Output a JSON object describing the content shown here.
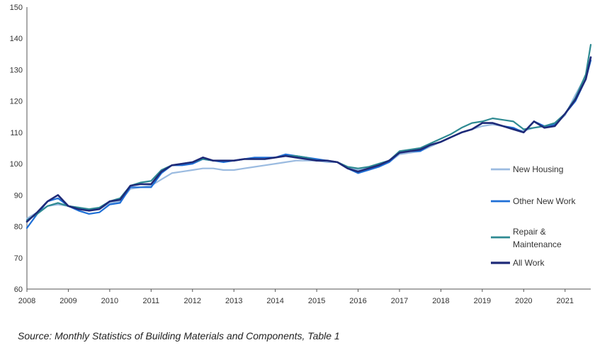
{
  "chart_data": {
    "type": "line",
    "title": "",
    "xlabel": "",
    "ylabel": "",
    "xlim": [
      2008,
      2021.62
    ],
    "ylim": [
      60,
      150
    ],
    "yticks": [
      60,
      70,
      80,
      90,
      100,
      110,
      120,
      130,
      140,
      150
    ],
    "xticks": [
      "2008",
      "2009",
      "2010",
      "2011",
      "2012",
      "2013",
      "2014",
      "2015",
      "2016",
      "2017",
      "2018",
      "2019",
      "2020",
      "2021"
    ],
    "grid": false,
    "legend_position": "right",
    "series": [
      {
        "name": "New Housing",
        "color": "#9bbbe0",
        "width": 2.2,
        "points": [
          [
            2008,
            82.5
          ],
          [
            2008.25,
            84.5
          ],
          [
            2008.5,
            86.5
          ],
          [
            2008.75,
            87
          ],
          [
            2009,
            86.5
          ],
          [
            2009.25,
            86
          ],
          [
            2009.5,
            85.5
          ],
          [
            2009.75,
            85.5
          ],
          [
            2010,
            87.5
          ],
          [
            2010.25,
            88
          ],
          [
            2010.5,
            92
          ],
          [
            2010.75,
            92.5
          ],
          [
            2011,
            93
          ],
          [
            2011.25,
            95
          ],
          [
            2011.5,
            97
          ],
          [
            2011.75,
            97.5
          ],
          [
            2012,
            98
          ],
          [
            2012.25,
            98.5
          ],
          [
            2012.5,
            98.5
          ],
          [
            2012.75,
            98
          ],
          [
            2013,
            98
          ],
          [
            2013.25,
            98.5
          ],
          [
            2013.5,
            99
          ],
          [
            2013.75,
            99.5
          ],
          [
            2014,
            100
          ],
          [
            2014.25,
            100.5
          ],
          [
            2014.5,
            101
          ],
          [
            2014.75,
            101
          ],
          [
            2015,
            101
          ],
          [
            2015.25,
            100.5
          ],
          [
            2015.5,
            100.5
          ],
          [
            2015.75,
            99
          ],
          [
            2016,
            98
          ],
          [
            2016.25,
            98.5
          ],
          [
            2016.5,
            99.5
          ],
          [
            2016.75,
            100.5
          ],
          [
            2017,
            103
          ],
          [
            2017.25,
            103.5
          ],
          [
            2017.5,
            104
          ],
          [
            2017.75,
            105.5
          ],
          [
            2018,
            107
          ],
          [
            2018.25,
            108.5
          ],
          [
            2018.5,
            110
          ],
          [
            2018.75,
            111
          ],
          [
            2019,
            112
          ],
          [
            2019.25,
            112.5
          ],
          [
            2019.5,
            112
          ],
          [
            2019.75,
            111
          ],
          [
            2020,
            110.5
          ],
          [
            2020.25,
            111.5
          ],
          [
            2020.5,
            112
          ],
          [
            2020.75,
            112.5
          ],
          [
            2021,
            115.5
          ],
          [
            2021.25,
            122
          ],
          [
            2021.5,
            128
          ],
          [
            2021.62,
            134
          ]
        ]
      },
      {
        "name": "Other New Work",
        "color": "#1f6fd6",
        "width": 2.2,
        "points": [
          [
            2008,
            79.5
          ],
          [
            2008.25,
            84
          ],
          [
            2008.5,
            88
          ],
          [
            2008.75,
            89
          ],
          [
            2009,
            86.5
          ],
          [
            2009.25,
            85
          ],
          [
            2009.5,
            84
          ],
          [
            2009.75,
            84.5
          ],
          [
            2010,
            87
          ],
          [
            2010.25,
            87.5
          ],
          [
            2010.5,
            92.5
          ],
          [
            2010.75,
            92.5
          ],
          [
            2011,
            92.5
          ],
          [
            2011.25,
            97
          ],
          [
            2011.5,
            99.5
          ],
          [
            2011.75,
            99.5
          ],
          [
            2012,
            100
          ],
          [
            2012.25,
            101.5
          ],
          [
            2012.5,
            101
          ],
          [
            2012.75,
            100.5
          ],
          [
            2013,
            101
          ],
          [
            2013.25,
            101.5
          ],
          [
            2013.5,
            102
          ],
          [
            2013.75,
            102
          ],
          [
            2014,
            102
          ],
          [
            2014.25,
            103
          ],
          [
            2014.5,
            102.5
          ],
          [
            2014.75,
            102
          ],
          [
            2015,
            101.5
          ],
          [
            2015.25,
            101
          ],
          [
            2015.5,
            100.5
          ],
          [
            2015.75,
            98.5
          ],
          [
            2016,
            97
          ],
          [
            2016.25,
            98
          ],
          [
            2016.5,
            99
          ],
          [
            2016.75,
            100.5
          ],
          [
            2017,
            103.5
          ],
          [
            2017.25,
            104
          ],
          [
            2017.5,
            104
          ],
          [
            2017.75,
            106
          ],
          [
            2018,
            107
          ],
          [
            2018.25,
            108.5
          ],
          [
            2018.5,
            110
          ],
          [
            2018.75,
            111
          ],
          [
            2019,
            113
          ],
          [
            2019.25,
            113
          ],
          [
            2019.5,
            112
          ],
          [
            2019.75,
            111.5
          ],
          [
            2020,
            110
          ],
          [
            2020.25,
            113.5
          ],
          [
            2020.5,
            112
          ],
          [
            2020.75,
            112.5
          ],
          [
            2021,
            116
          ],
          [
            2021.25,
            120
          ],
          [
            2021.5,
            127
          ],
          [
            2021.62,
            133
          ]
        ]
      },
      {
        "name": "Repair & Maintenance",
        "color": "#2e8a92",
        "width": 2.2,
        "points": [
          [
            2008,
            82
          ],
          [
            2008.25,
            84
          ],
          [
            2008.5,
            86.5
          ],
          [
            2008.75,
            87.5
          ],
          [
            2009,
            86.5
          ],
          [
            2009.25,
            86
          ],
          [
            2009.5,
            85.5
          ],
          [
            2009.75,
            86
          ],
          [
            2010,
            88
          ],
          [
            2010.25,
            89
          ],
          [
            2010.5,
            93
          ],
          [
            2010.75,
            94
          ],
          [
            2011,
            94.5
          ],
          [
            2011.25,
            98
          ],
          [
            2011.5,
            99.5
          ],
          [
            2011.75,
            100
          ],
          [
            2012,
            100.5
          ],
          [
            2012.25,
            101.5
          ],
          [
            2012.5,
            101
          ],
          [
            2012.75,
            101
          ],
          [
            2013,
            101
          ],
          [
            2013.25,
            101.5
          ],
          [
            2013.5,
            101.5
          ],
          [
            2013.75,
            101.5
          ],
          [
            2014,
            102
          ],
          [
            2014.25,
            102.5
          ],
          [
            2014.5,
            102.5
          ],
          [
            2014.75,
            102
          ],
          [
            2015,
            101
          ],
          [
            2015.25,
            101
          ],
          [
            2015.5,
            100.5
          ],
          [
            2015.75,
            99
          ],
          [
            2016,
            98.5
          ],
          [
            2016.25,
            99
          ],
          [
            2016.5,
            100
          ],
          [
            2016.75,
            101
          ],
          [
            2017,
            104
          ],
          [
            2017.25,
            104.5
          ],
          [
            2017.5,
            105
          ],
          [
            2017.75,
            106.5
          ],
          [
            2018,
            108
          ],
          [
            2018.25,
            109.5
          ],
          [
            2018.5,
            111.5
          ],
          [
            2018.75,
            113
          ],
          [
            2019,
            113.5
          ],
          [
            2019.25,
            114.5
          ],
          [
            2019.5,
            114
          ],
          [
            2019.75,
            113.5
          ],
          [
            2020,
            111
          ],
          [
            2020.25,
            111.5
          ],
          [
            2020.5,
            112
          ],
          [
            2020.75,
            113
          ],
          [
            2021,
            116
          ],
          [
            2021.25,
            121
          ],
          [
            2021.5,
            128.5
          ],
          [
            2021.62,
            138
          ]
        ]
      },
      {
        "name": "All Work",
        "color": "#1e2a78",
        "width": 2.6,
        "points": [
          [
            2008,
            81.5
          ],
          [
            2008.25,
            84.5
          ],
          [
            2008.5,
            88
          ],
          [
            2008.75,
            90
          ],
          [
            2009,
            86.5
          ],
          [
            2009.25,
            85.5
          ],
          [
            2009.5,
            85
          ],
          [
            2009.75,
            85.5
          ],
          [
            2010,
            88
          ],
          [
            2010.25,
            88.5
          ],
          [
            2010.5,
            93
          ],
          [
            2010.75,
            93.5
          ],
          [
            2011,
            93.5
          ],
          [
            2011.25,
            97.5
          ],
          [
            2011.5,
            99.5
          ],
          [
            2011.75,
            100
          ],
          [
            2012,
            100.5
          ],
          [
            2012.25,
            102
          ],
          [
            2012.5,
            101
          ],
          [
            2012.75,
            101
          ],
          [
            2013,
            101
          ],
          [
            2013.25,
            101.5
          ],
          [
            2013.5,
            101.5
          ],
          [
            2013.75,
            101.5
          ],
          [
            2014,
            102
          ],
          [
            2014.25,
            102.5
          ],
          [
            2014.5,
            102
          ],
          [
            2014.75,
            101.5
          ],
          [
            2015,
            101
          ],
          [
            2015.25,
            101
          ],
          [
            2015.5,
            100.5
          ],
          [
            2015.75,
            98.5
          ],
          [
            2016,
            97.5
          ],
          [
            2016.25,
            98.5
          ],
          [
            2016.5,
            99.5
          ],
          [
            2016.75,
            101
          ],
          [
            2017,
            103.5
          ],
          [
            2017.25,
            104
          ],
          [
            2017.5,
            104.5
          ],
          [
            2017.75,
            106
          ],
          [
            2018,
            107
          ],
          [
            2018.25,
            108.5
          ],
          [
            2018.5,
            110
          ],
          [
            2018.75,
            111
          ],
          [
            2019,
            113
          ],
          [
            2019.25,
            113
          ],
          [
            2019.5,
            112
          ],
          [
            2019.75,
            111
          ],
          [
            2020,
            110
          ],
          [
            2020.25,
            113.5
          ],
          [
            2020.5,
            111.5
          ],
          [
            2020.75,
            112
          ],
          [
            2021,
            116
          ],
          [
            2021.25,
            120.5
          ],
          [
            2021.5,
            127
          ],
          [
            2021.62,
            134
          ]
        ]
      }
    ],
    "legend": [
      {
        "series": "New Housing",
        "lines": [
          "New Housing"
        ]
      },
      {
        "series": "Other New Work",
        "lines": [
          "Other New Work"
        ]
      },
      {
        "series": "Repair & Maintenance",
        "lines": [
          "Repair &",
          "Maintenance"
        ]
      },
      {
        "series": "All Work",
        "lines": [
          "All Work"
        ]
      }
    ]
  },
  "source_text": "Source: Monthly Statistics of Building Materials and Components, Table 1"
}
